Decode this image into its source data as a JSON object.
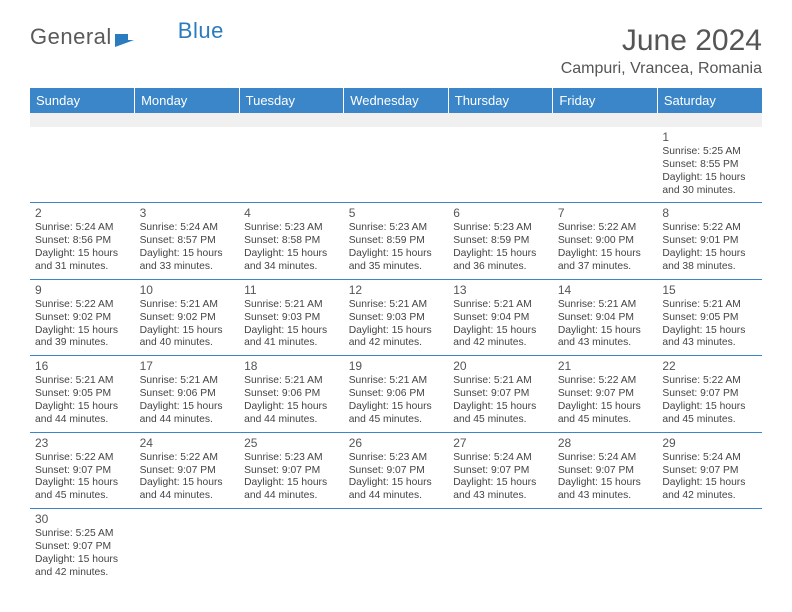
{
  "brand": {
    "word1": "General",
    "word2": "Blue"
  },
  "title": "June 2024",
  "location": "Campuri, Vrancea, Romania",
  "colors": {
    "header_bg": "#3a86c8",
    "header_text": "#ffffff",
    "divider": "#3a86c8",
    "text": "#444444",
    "title_text": "#555555"
  },
  "days": [
    "Sunday",
    "Monday",
    "Tuesday",
    "Wednesday",
    "Thursday",
    "Friday",
    "Saturday"
  ],
  "weeks": [
    [
      null,
      null,
      null,
      null,
      null,
      null,
      {
        "n": "1",
        "sr": "Sunrise: 5:25 AM",
        "ss": "Sunset: 8:55 PM",
        "dl": "Daylight: 15 hours and 30 minutes."
      }
    ],
    [
      {
        "n": "2",
        "sr": "Sunrise: 5:24 AM",
        "ss": "Sunset: 8:56 PM",
        "dl": "Daylight: 15 hours and 31 minutes."
      },
      {
        "n": "3",
        "sr": "Sunrise: 5:24 AM",
        "ss": "Sunset: 8:57 PM",
        "dl": "Daylight: 15 hours and 33 minutes."
      },
      {
        "n": "4",
        "sr": "Sunrise: 5:23 AM",
        "ss": "Sunset: 8:58 PM",
        "dl": "Daylight: 15 hours and 34 minutes."
      },
      {
        "n": "5",
        "sr": "Sunrise: 5:23 AM",
        "ss": "Sunset: 8:59 PM",
        "dl": "Daylight: 15 hours and 35 minutes."
      },
      {
        "n": "6",
        "sr": "Sunrise: 5:23 AM",
        "ss": "Sunset: 8:59 PM",
        "dl": "Daylight: 15 hours and 36 minutes."
      },
      {
        "n": "7",
        "sr": "Sunrise: 5:22 AM",
        "ss": "Sunset: 9:00 PM",
        "dl": "Daylight: 15 hours and 37 minutes."
      },
      {
        "n": "8",
        "sr": "Sunrise: 5:22 AM",
        "ss": "Sunset: 9:01 PM",
        "dl": "Daylight: 15 hours and 38 minutes."
      }
    ],
    [
      {
        "n": "9",
        "sr": "Sunrise: 5:22 AM",
        "ss": "Sunset: 9:02 PM",
        "dl": "Daylight: 15 hours and 39 minutes."
      },
      {
        "n": "10",
        "sr": "Sunrise: 5:21 AM",
        "ss": "Sunset: 9:02 PM",
        "dl": "Daylight: 15 hours and 40 minutes."
      },
      {
        "n": "11",
        "sr": "Sunrise: 5:21 AM",
        "ss": "Sunset: 9:03 PM",
        "dl": "Daylight: 15 hours and 41 minutes."
      },
      {
        "n": "12",
        "sr": "Sunrise: 5:21 AM",
        "ss": "Sunset: 9:03 PM",
        "dl": "Daylight: 15 hours and 42 minutes."
      },
      {
        "n": "13",
        "sr": "Sunrise: 5:21 AM",
        "ss": "Sunset: 9:04 PM",
        "dl": "Daylight: 15 hours and 42 minutes."
      },
      {
        "n": "14",
        "sr": "Sunrise: 5:21 AM",
        "ss": "Sunset: 9:04 PM",
        "dl": "Daylight: 15 hours and 43 minutes."
      },
      {
        "n": "15",
        "sr": "Sunrise: 5:21 AM",
        "ss": "Sunset: 9:05 PM",
        "dl": "Daylight: 15 hours and 43 minutes."
      }
    ],
    [
      {
        "n": "16",
        "sr": "Sunrise: 5:21 AM",
        "ss": "Sunset: 9:05 PM",
        "dl": "Daylight: 15 hours and 44 minutes."
      },
      {
        "n": "17",
        "sr": "Sunrise: 5:21 AM",
        "ss": "Sunset: 9:06 PM",
        "dl": "Daylight: 15 hours and 44 minutes."
      },
      {
        "n": "18",
        "sr": "Sunrise: 5:21 AM",
        "ss": "Sunset: 9:06 PM",
        "dl": "Daylight: 15 hours and 44 minutes."
      },
      {
        "n": "19",
        "sr": "Sunrise: 5:21 AM",
        "ss": "Sunset: 9:06 PM",
        "dl": "Daylight: 15 hours and 45 minutes."
      },
      {
        "n": "20",
        "sr": "Sunrise: 5:21 AM",
        "ss": "Sunset: 9:07 PM",
        "dl": "Daylight: 15 hours and 45 minutes."
      },
      {
        "n": "21",
        "sr": "Sunrise: 5:22 AM",
        "ss": "Sunset: 9:07 PM",
        "dl": "Daylight: 15 hours and 45 minutes."
      },
      {
        "n": "22",
        "sr": "Sunrise: 5:22 AM",
        "ss": "Sunset: 9:07 PM",
        "dl": "Daylight: 15 hours and 45 minutes."
      }
    ],
    [
      {
        "n": "23",
        "sr": "Sunrise: 5:22 AM",
        "ss": "Sunset: 9:07 PM",
        "dl": "Daylight: 15 hours and 45 minutes."
      },
      {
        "n": "24",
        "sr": "Sunrise: 5:22 AM",
        "ss": "Sunset: 9:07 PM",
        "dl": "Daylight: 15 hours and 44 minutes."
      },
      {
        "n": "25",
        "sr": "Sunrise: 5:23 AM",
        "ss": "Sunset: 9:07 PM",
        "dl": "Daylight: 15 hours and 44 minutes."
      },
      {
        "n": "26",
        "sr": "Sunrise: 5:23 AM",
        "ss": "Sunset: 9:07 PM",
        "dl": "Daylight: 15 hours and 44 minutes."
      },
      {
        "n": "27",
        "sr": "Sunrise: 5:24 AM",
        "ss": "Sunset: 9:07 PM",
        "dl": "Daylight: 15 hours and 43 minutes."
      },
      {
        "n": "28",
        "sr": "Sunrise: 5:24 AM",
        "ss": "Sunset: 9:07 PM",
        "dl": "Daylight: 15 hours and 43 minutes."
      },
      {
        "n": "29",
        "sr": "Sunrise: 5:24 AM",
        "ss": "Sunset: 9:07 PM",
        "dl": "Daylight: 15 hours and 42 minutes."
      }
    ],
    [
      {
        "n": "30",
        "sr": "Sunrise: 5:25 AM",
        "ss": "Sunset: 9:07 PM",
        "dl": "Daylight: 15 hours and 42 minutes."
      },
      null,
      null,
      null,
      null,
      null,
      null
    ]
  ]
}
